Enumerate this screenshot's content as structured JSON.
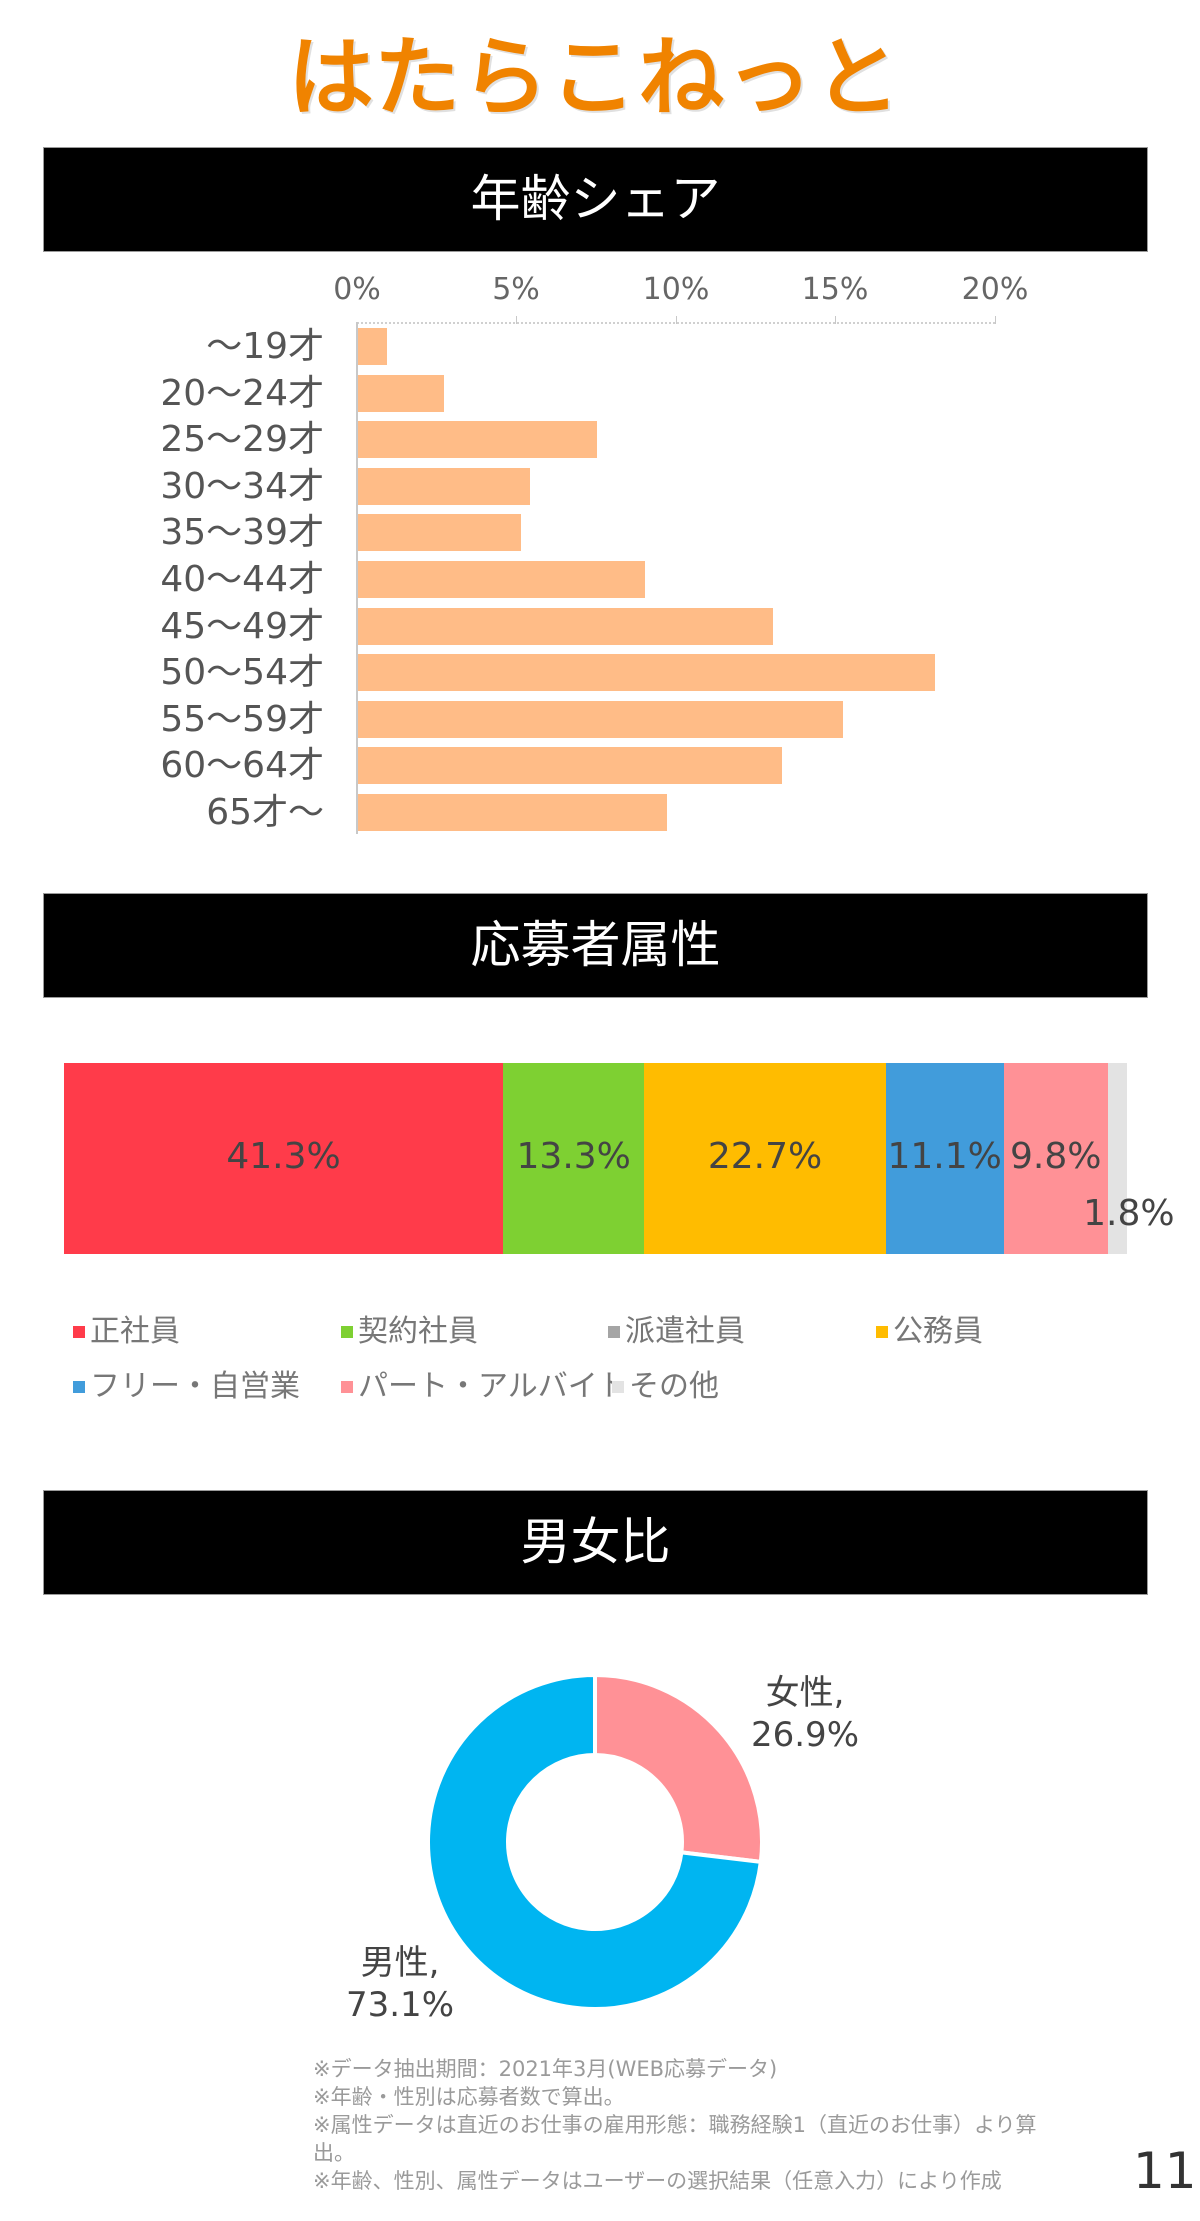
{
  "logo": {
    "text": "はたらこねっと",
    "color": "#F08300"
  },
  "sections": {
    "age": {
      "title": "年齢シェア"
    },
    "attributes": {
      "title": "応募者属性"
    },
    "gender": {
      "title": "男女比"
    }
  },
  "age_chart": {
    "ticks": [
      "0%",
      "5%",
      "10%",
      "15%",
      "20%"
    ],
    "bar_color": "#FFBC87",
    "rows": [
      {
        "label": "～19才",
        "value": 0.9
      },
      {
        "label": "20～24才",
        "value": 2.7
      },
      {
        "label": "25～29才",
        "value": 7.5
      },
      {
        "label": "30～34才",
        "value": 5.4
      },
      {
        "label": "35～39才",
        "value": 5.1
      },
      {
        "label": "40～44才",
        "value": 9.0
      },
      {
        "label": "45～49才",
        "value": 13.0
      },
      {
        "label": "50～54才",
        "value": 18.1
      },
      {
        "label": "55～59才",
        "value": 15.2
      },
      {
        "label": "60～64才",
        "value": 13.3
      },
      {
        "label": "65才～",
        "value": 9.7
      }
    ]
  },
  "attribute_chart": {
    "segments": [
      {
        "name": "正社員",
        "value": 41.3,
        "label": "41.3%",
        "color": "#FF3B4A"
      },
      {
        "name": "契約社員",
        "value": 13.3,
        "label": "13.3%",
        "color": "#7ED032"
      },
      {
        "name": "公務員",
        "value": 22.7,
        "label": "22.7%",
        "color": "#FFBC00"
      },
      {
        "name": "フリー・自営業",
        "value": 11.1,
        "label": "11.1%",
        "color": "#419CDB"
      },
      {
        "name": "パート・アルバイト",
        "value": 9.8,
        "label": "9.8%",
        "color": "#FF9196"
      },
      {
        "name": "その他",
        "value": 1.8,
        "label": "1.8%",
        "color": "#E3E3E3"
      }
    ],
    "legend": [
      {
        "label": "正社員",
        "color": "#FF3B4A"
      },
      {
        "label": "契約社員",
        "color": "#7ED032"
      },
      {
        "label": "派遣社員",
        "color": "#A5A5A5"
      },
      {
        "label": "公務員",
        "color": "#FFBC00"
      },
      {
        "label": "フリー・自営業",
        "color": "#419CDB"
      },
      {
        "label": "パート・アルバイト",
        "color": "#FF9196"
      },
      {
        "label": "その他",
        "color": "#E3E3E3"
      }
    ]
  },
  "gender_chart": {
    "female": {
      "name": "女性,",
      "label": "26.9%",
      "value": 26.9,
      "color": "#FF9196"
    },
    "male": {
      "name": "男性,",
      "label": "73.1%",
      "value": 73.1,
      "color": "#00B5F1"
    }
  },
  "footnotes": [
    "※データ抽出期間：2021年3月(WEB応募データ)",
    "※年齢・性別は応募者数で算出。",
    "※属性データは直近のお仕事の雇用形態：職務経験1（直近のお仕事）より算",
    "出。",
    "※年齢、性別、属性データはユーザーの選択結果（任意入力）により作成"
  ],
  "page_number": "11",
  "chart_data": [
    {
      "type": "bar",
      "orientation": "horizontal",
      "title": "年齢シェア",
      "categories": [
        "～19才",
        "20～24才",
        "25～29才",
        "30～34才",
        "35～39才",
        "40～44才",
        "45～49才",
        "50～54才",
        "55～59才",
        "60～64才",
        "65才～"
      ],
      "values": [
        0.9,
        2.7,
        7.5,
        5.4,
        5.1,
        9.0,
        13.0,
        18.1,
        15.2,
        13.3,
        9.7
      ],
      "xlabel": "",
      "ylabel": "",
      "xlim": [
        0,
        20
      ],
      "xticks": [
        "0%",
        "5%",
        "10%",
        "15%",
        "20%"
      ],
      "axis_position": "top",
      "grid": false,
      "color": "#FFBC87"
    },
    {
      "type": "bar",
      "orientation": "stacked-horizontal-100",
      "title": "応募者属性",
      "categories": [
        "正社員",
        "契約社員",
        "派遣社員",
        "公務員",
        "フリー・自営業",
        "パート・アルバイト",
        "その他"
      ],
      "values": [
        41.3,
        13.3,
        0,
        22.7,
        11.1,
        9.8,
        1.8
      ],
      "data_labels": [
        "41.3%",
        "13.3%",
        "",
        "22.7%",
        "11.1%",
        "9.8%",
        "1.8%"
      ],
      "legend_position": "bottom"
    },
    {
      "type": "pie",
      "variant": "donut",
      "title": "男女比",
      "categories": [
        "女性",
        "男性"
      ],
      "values": [
        26.9,
        73.1
      ],
      "data_labels": [
        "女性, 26.9%",
        "男性, 73.1%"
      ],
      "colors": [
        "#FF9196",
        "#00B5F1"
      ]
    }
  ]
}
